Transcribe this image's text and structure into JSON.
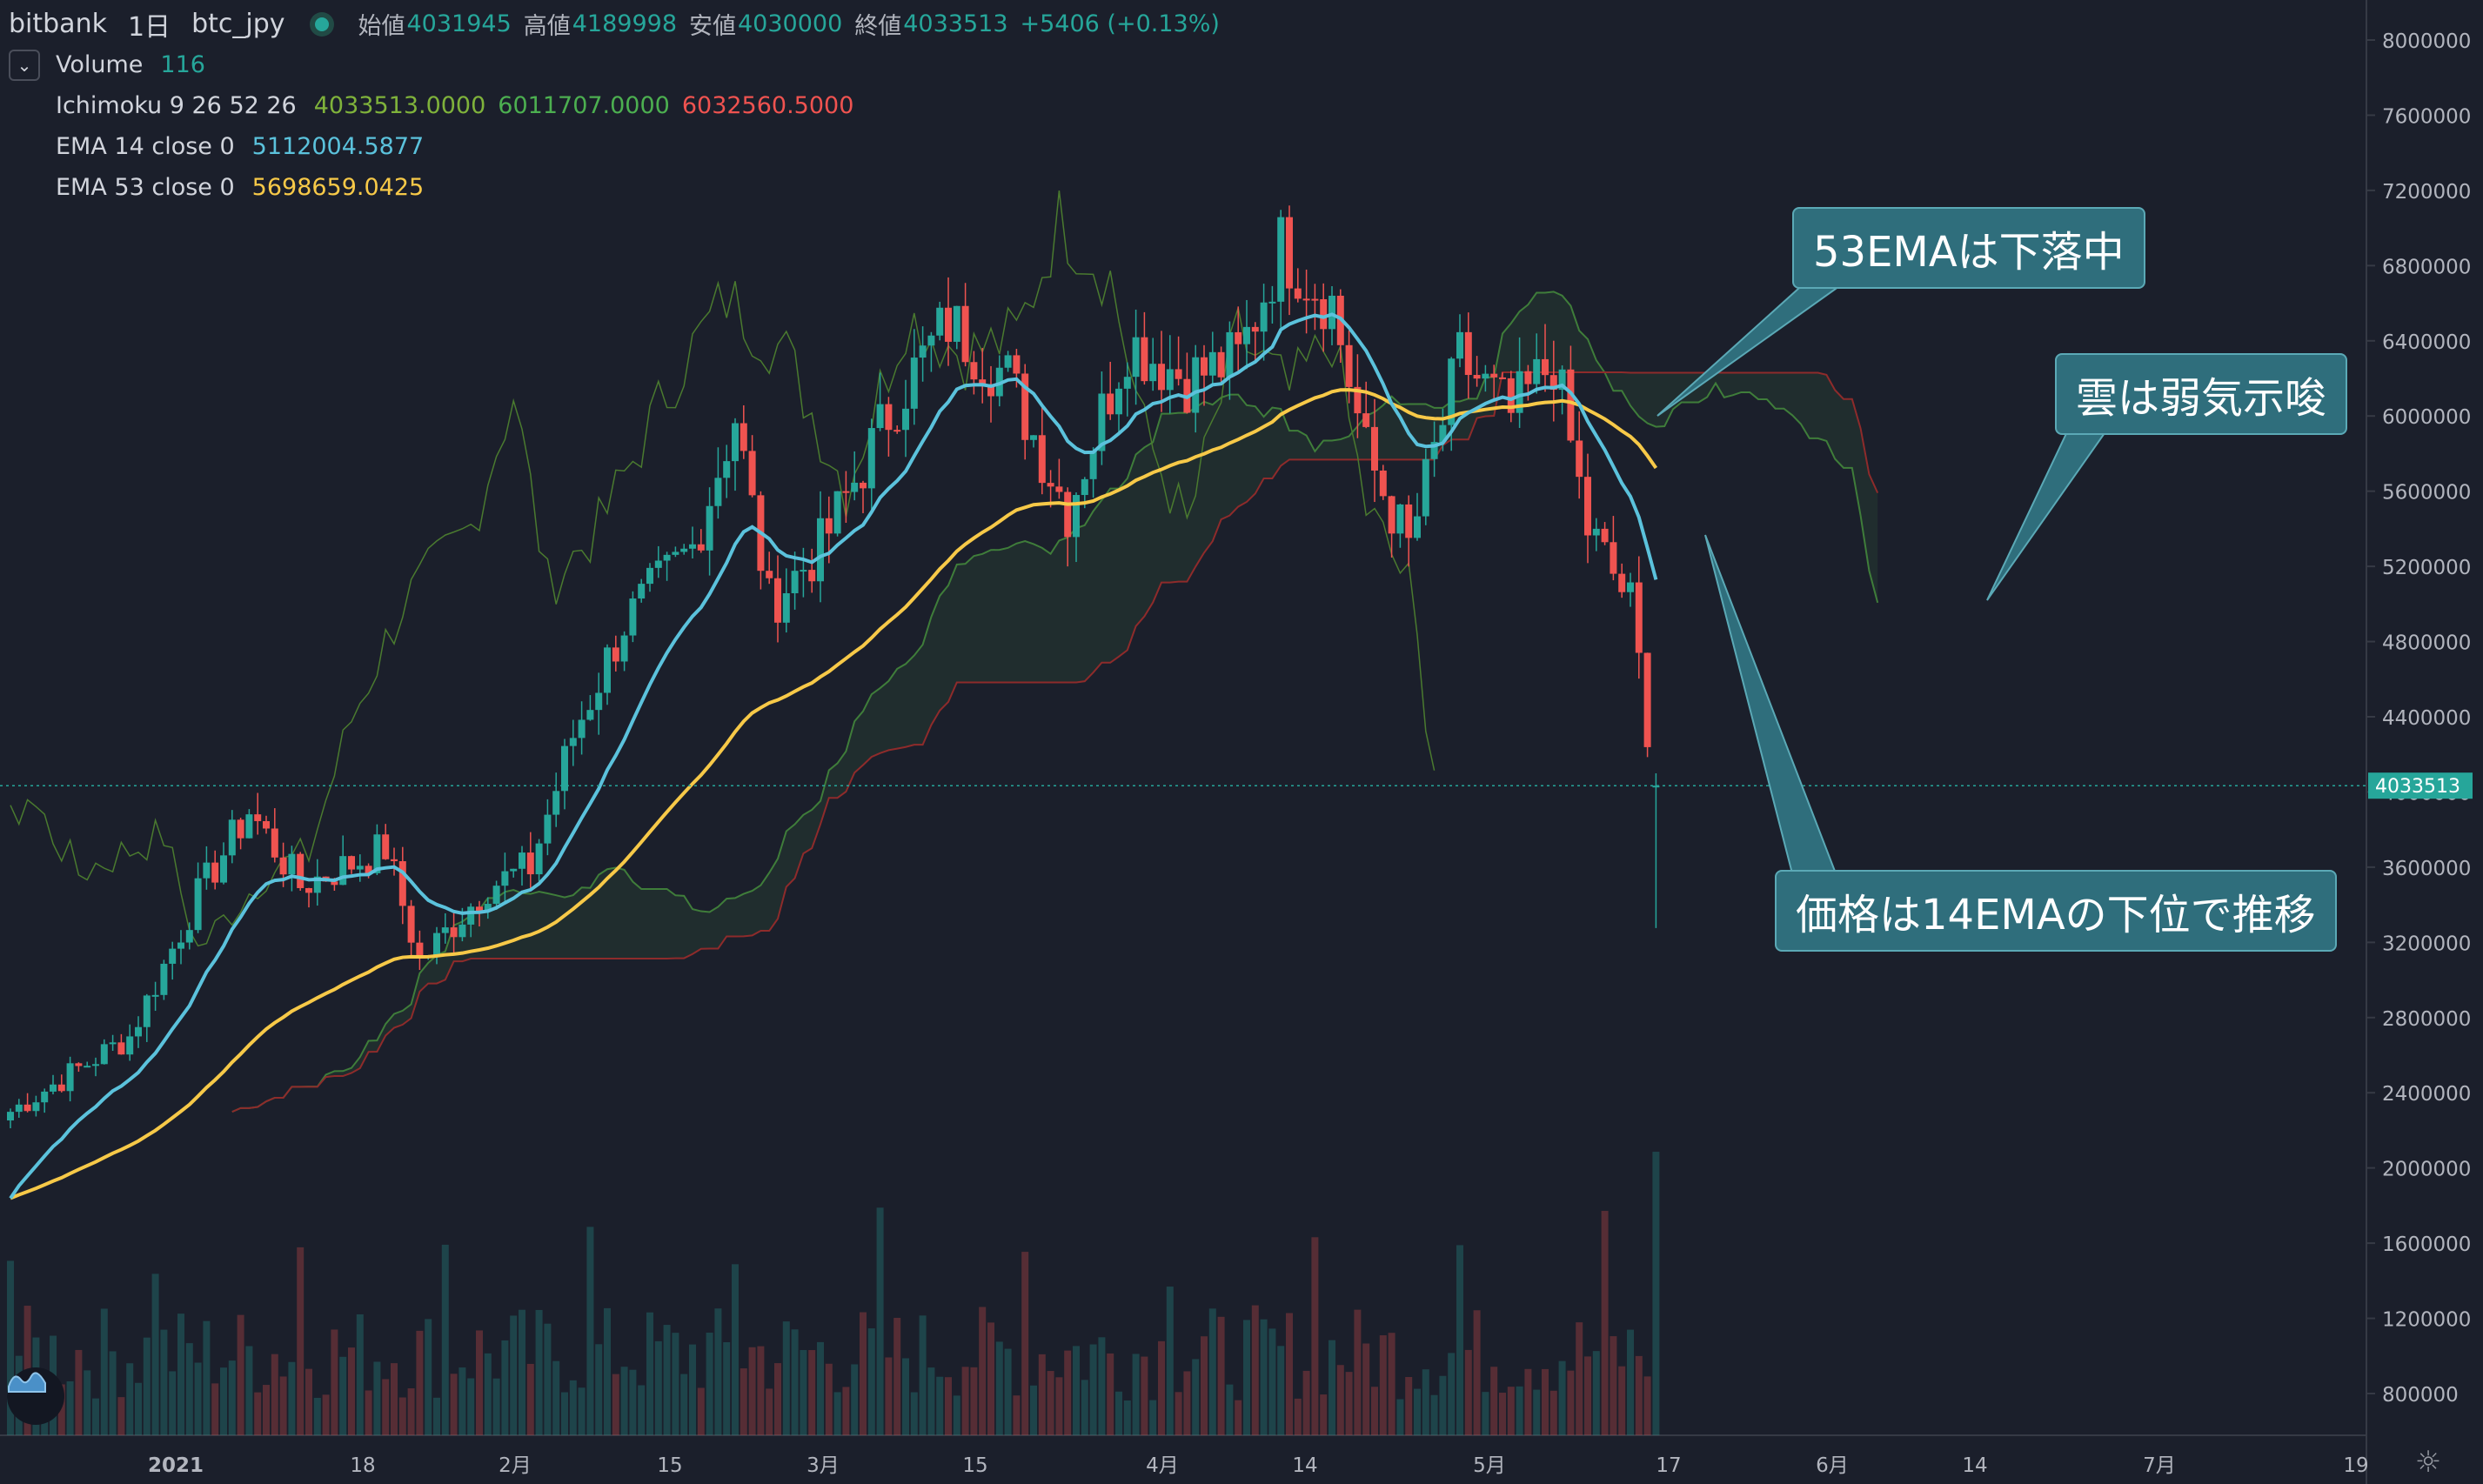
{
  "header": {
    "exchange": "bitbank",
    "interval": "1日",
    "symbol": "btc_jpy",
    "open_label": "始値",
    "open_value": "4031945",
    "high_label": "高値",
    "high_value": "4189998",
    "low_label": "安値",
    "low_value": "4030000",
    "close_label": "終値",
    "close_value": "4033513",
    "change": "+5406 (+0.13%)"
  },
  "indicators": {
    "volume": {
      "name": "Volume",
      "value": "116"
    },
    "ichimoku": {
      "name": "Ichimoku 9 26 52 26",
      "v1": "4033513.0000",
      "v2": "6011707.0000",
      "v3": "6032560.5000",
      "c1": "#7fb23b",
      "c2": "#4caf50",
      "c3": "#ef5350"
    },
    "ema14": {
      "name": "EMA 14 close 0",
      "value": "5112004.5877",
      "color": "#5bc2dc"
    },
    "ema53": {
      "name": "EMA 53 close 0",
      "value": "5698659.0425",
      "color": "#f7c948"
    }
  },
  "annotations": {
    "ema53": "53EMAは下落中",
    "cloud": "雲は弱気示唆",
    "price": "価格は14EMAの下位で推移"
  },
  "colors": {
    "background": "#1b1f2b",
    "up": "#26a69a",
    "down": "#ef5350",
    "callout_bg": "#2f6e7c",
    "last_price_bg": "#26a69a"
  },
  "chart_data": {
    "type": "candlestick",
    "symbol": "btc_jpy",
    "interval": "1日",
    "ylim": [
      600000,
      8200000
    ],
    "y_ticks": [
      8000000,
      7600000,
      7200000,
      6800000,
      6400000,
      6000000,
      5600000,
      5200000,
      4800000,
      4400000,
      4000000,
      3600000,
      3200000,
      2800000,
      2400000,
      2000000,
      1600000,
      1200000,
      800000
    ],
    "x_ticks": [
      "2021",
      "18",
      "2月",
      "15",
      "3月",
      "15",
      "4月",
      "14",
      "5月",
      "17",
      "6月",
      "14",
      "7月",
      "19"
    ],
    "last_price": 4033513,
    "last_price_label": "4033513",
    "series": [
      {
        "name": "Price",
        "anchors": [
          {
            "i": 0,
            "c": 2300000
          },
          {
            "i": 14,
            "c": 2700000
          },
          {
            "i": 22,
            "c": 3450000
          },
          {
            "i": 28,
            "c": 3900000
          },
          {
            "i": 34,
            "c": 3500000
          },
          {
            "i": 44,
            "c": 3700000
          },
          {
            "i": 48,
            "c": 3100000
          },
          {
            "i": 56,
            "c": 3500000
          },
          {
            "i": 61,
            "c": 3600000
          },
          {
            "i": 66,
            "c": 4300000
          },
          {
            "i": 72,
            "c": 4900000
          },
          {
            "i": 80,
            "c": 5300000
          },
          {
            "i": 85,
            "c": 6000000
          },
          {
            "i": 89,
            "c": 5000000
          },
          {
            "i": 95,
            "c": 5300000
          },
          {
            "i": 104,
            "c": 6100000
          },
          {
            "i": 110,
            "c": 6500000
          },
          {
            "i": 117,
            "c": 6200000
          },
          {
            "i": 124,
            "c": 5500000
          },
          {
            "i": 131,
            "c": 6400000
          },
          {
            "i": 138,
            "c": 6200000
          },
          {
            "i": 144,
            "c": 6300000
          },
          {
            "i": 149,
            "c": 6900000
          },
          {
            "i": 155,
            "c": 6600000
          },
          {
            "i": 159,
            "c": 5800000
          },
          {
            "i": 164,
            "c": 5300000
          },
          {
            "i": 170,
            "c": 6300000
          },
          {
            "i": 176,
            "c": 6000000
          },
          {
            "i": 181,
            "c": 6300000
          },
          {
            "i": 185,
            "c": 5400000
          },
          {
            "i": 190,
            "c": 5000000
          },
          {
            "i": 193,
            "c": 4033513
          }
        ]
      },
      {
        "name": "EMA 14 close 0",
        "last": 5112004.5877
      },
      {
        "name": "EMA 53 close 0",
        "last": 5698659.0425
      },
      {
        "name": "Ichimoku 9 26 52 26",
        "values": [
          4033513.0,
          6011707.0,
          6032560.5
        ]
      },
      {
        "name": "Volume",
        "last": 116
      }
    ]
  }
}
